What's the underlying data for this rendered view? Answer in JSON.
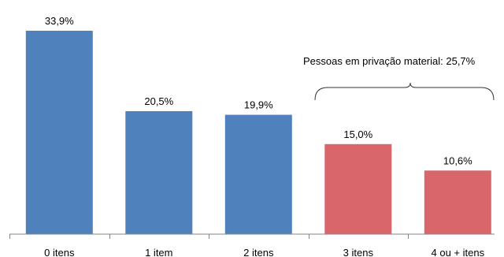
{
  "chart_data": {
    "type": "bar",
    "categories": [
      "0 itens",
      "1 item",
      "2 itens",
      "3 itens",
      "4 ou + itens"
    ],
    "values": [
      33.9,
      20.5,
      19.9,
      15.0,
      10.6
    ],
    "value_labels": [
      "33,9%",
      "20,5%",
      "19,9%",
      "15,0%",
      "10,6%"
    ],
    "ylim": [
      0,
      35
    ],
    "grid": false,
    "colors": {
      "not_deprived": "#4F81BD",
      "deprived": "#D9666A"
    },
    "bar_groups": [
      "not_deprived",
      "not_deprived",
      "not_deprived",
      "deprived",
      "deprived"
    ],
    "annotation": {
      "text": "Pessoas em privação material: 25,7%",
      "spans_categories": [
        "3 itens",
        "4 ou + itens"
      ]
    }
  }
}
